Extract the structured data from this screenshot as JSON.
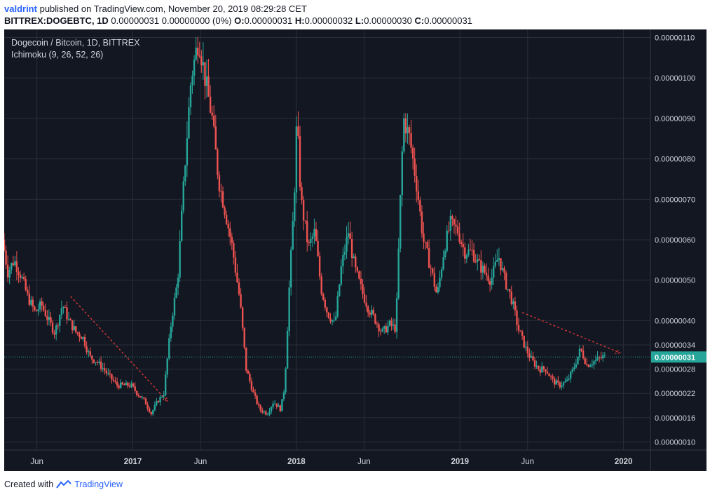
{
  "header": {
    "user": "valdrint",
    "published_text": "published on TradingView.com, November 20, 2019 08:29:28 CET",
    "symbol": "BITTREX:DOGEBTC, 1D",
    "last": "0.00000031",
    "change": "0.00000000 (0%)",
    "open_label": "O:",
    "open": "0.00000031",
    "high_label": "H:",
    "high": "0.00000032",
    "low_label": "L:",
    "low": "0.00000030",
    "close_label": "C:",
    "close": "0.00000031"
  },
  "legend": {
    "title": "Dogecoin / Bitcoin, 1D, BITTREX",
    "indicator": "Ichimoku (9, 26, 52, 26)"
  },
  "footer": {
    "created_with": "Created with",
    "brand": "TradingView"
  },
  "colors": {
    "background": "#131722",
    "grid": "#2a2e39",
    "up": "#26a69a",
    "down": "#ef5350",
    "trendline": "#e53935",
    "current_price": "#26a69a",
    "axis_text": "#d1d4dc"
  },
  "chart_data": {
    "type": "line",
    "x_axis_labels": [
      "Jun",
      "2017",
      "Jun",
      "2018",
      "Jun",
      "2019",
      "Jun",
      "2020"
    ],
    "y_axis_labels": [
      "0.00000110",
      "0.00000100",
      "0.00000090",
      "0.00000080",
      "0.00000070",
      "0.00000060",
      "0.00000050",
      "0.00000040",
      "0.00000034",
      "0.00000028",
      "0.00000022",
      "0.00000016",
      "0.00000010"
    ],
    "current_price_label": "0.00000031",
    "current_price": 31,
    "y_unit_scale": "1e-8 BTC",
    "y_min": 8,
    "y_max": 112,
    "x_start": "2016-03-20",
    "x_end": "2020-03-01",
    "series": [
      {
        "values": [
          [
            "2016-03-20",
            60
          ],
          [
            "2016-04-01",
            52
          ],
          [
            "2016-04-15",
            55
          ],
          [
            "2016-05-01",
            51
          ],
          [
            "2016-05-15",
            46
          ],
          [
            "2016-06-01",
            42
          ],
          [
            "2016-06-15",
            44
          ],
          [
            "2016-07-01",
            40
          ],
          [
            "2016-07-15",
            37
          ],
          [
            "2016-08-01",
            44
          ],
          [
            "2016-08-15",
            40
          ],
          [
            "2016-09-01",
            37
          ],
          [
            "2016-09-15",
            36
          ],
          [
            "2016-10-01",
            31
          ],
          [
            "2016-10-15",
            30
          ],
          [
            "2016-11-01",
            28
          ],
          [
            "2016-11-15",
            26
          ],
          [
            "2016-12-01",
            24
          ],
          [
            "2016-12-15",
            24
          ],
          [
            "2017-01-01",
            24
          ],
          [
            "2017-01-15",
            22
          ],
          [
            "2017-02-01",
            20
          ],
          [
            "2017-02-15",
            17
          ],
          [
            "2017-03-01",
            20
          ],
          [
            "2017-03-15",
            22
          ],
          [
            "2017-04-01",
            40
          ],
          [
            "2017-04-15",
            50
          ],
          [
            "2017-05-01",
            78
          ],
          [
            "2017-05-15",
            100
          ],
          [
            "2017-06-01",
            110
          ],
          [
            "2017-06-15",
            100
          ],
          [
            "2017-07-01",
            90
          ],
          [
            "2017-07-15",
            75
          ],
          [
            "2017-08-01",
            66
          ],
          [
            "2017-08-15",
            58
          ],
          [
            "2017-09-01",
            45
          ],
          [
            "2017-09-15",
            28
          ],
          [
            "2017-10-01",
            22
          ],
          [
            "2017-10-15",
            18
          ],
          [
            "2017-11-01",
            17
          ],
          [
            "2017-11-15",
            20
          ],
          [
            "2017-12-01",
            18
          ],
          [
            "2017-12-10",
            24
          ],
          [
            "2017-12-20",
            48
          ],
          [
            "2017-12-31",
            70
          ],
          [
            "2018-01-06",
            90
          ],
          [
            "2018-01-15",
            70
          ],
          [
            "2018-02-01",
            58
          ],
          [
            "2018-02-15",
            62
          ],
          [
            "2018-03-01",
            48
          ],
          [
            "2018-03-15",
            42
          ],
          [
            "2018-04-01",
            39
          ],
          [
            "2018-04-15",
            53
          ],
          [
            "2018-05-01",
            62
          ],
          [
            "2018-05-15",
            53
          ],
          [
            "2018-06-01",
            47
          ],
          [
            "2018-06-15",
            43
          ],
          [
            "2018-07-01",
            40
          ],
          [
            "2018-07-15",
            37
          ],
          [
            "2018-08-01",
            39
          ],
          [
            "2018-08-15",
            38
          ],
          [
            "2018-08-25",
            70
          ],
          [
            "2018-09-01",
            90
          ],
          [
            "2018-09-15",
            85
          ],
          [
            "2018-10-01",
            73
          ],
          [
            "2018-10-15",
            60
          ],
          [
            "2018-11-01",
            53
          ],
          [
            "2018-11-15",
            46
          ],
          [
            "2018-12-01",
            58
          ],
          [
            "2018-12-15",
            64
          ],
          [
            "2019-01-01",
            62
          ],
          [
            "2019-01-15",
            57
          ],
          [
            "2019-02-01",
            57
          ],
          [
            "2019-02-15",
            54
          ],
          [
            "2019-03-01",
            52
          ],
          [
            "2019-03-15",
            50
          ],
          [
            "2019-04-01",
            56
          ],
          [
            "2019-04-15",
            50
          ],
          [
            "2019-05-01",
            45
          ],
          [
            "2019-05-15",
            38
          ],
          [
            "2019-06-01",
            33
          ],
          [
            "2019-06-15",
            30
          ],
          [
            "2019-07-01",
            28
          ],
          [
            "2019-07-15",
            28
          ],
          [
            "2019-08-01",
            25
          ],
          [
            "2019-08-15",
            24
          ],
          [
            "2019-09-01",
            25
          ],
          [
            "2019-09-15",
            28
          ],
          [
            "2019-10-01",
            33
          ],
          [
            "2019-10-15",
            29
          ],
          [
            "2019-11-01",
            30
          ],
          [
            "2019-11-20",
            31
          ]
        ]
      }
    ],
    "trendlines": [
      {
        "from": [
          "2016-08-15",
          46
        ],
        "to": [
          "2017-03-20",
          20
        ]
      },
      {
        "from": [
          "2019-05-20",
          42
        ],
        "to": [
          "2019-12-25",
          32
        ]
      }
    ]
  }
}
